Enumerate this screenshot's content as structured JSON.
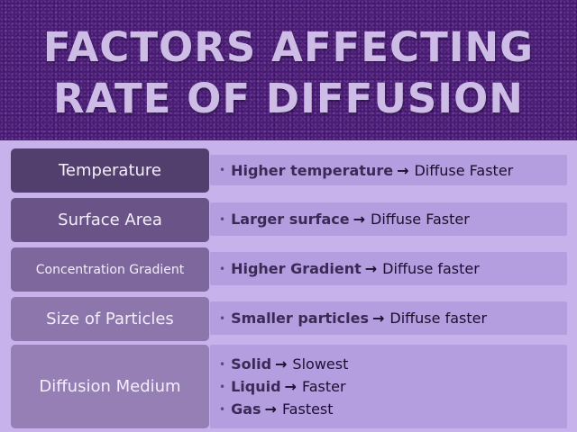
{
  "title": {
    "line1": "FACTORS AFFECTING",
    "line2": "RATE OF DIFFUSION"
  },
  "arrow_symbol": "→",
  "colors": {
    "header_bg": "#4b1b78",
    "title_text": "#cdbde6",
    "page_bg": "#c7b2ec",
    "description_bg": "#b59ee0"
  },
  "factors": [
    {
      "name": "Temperature",
      "fill": "#533f6e",
      "lines": [
        {
          "condition": "Higher temperature",
          "result": "Diffuse Faster"
        }
      ]
    },
    {
      "name": "Surface Area",
      "fill": "#6a5487",
      "lines": [
        {
          "condition": "Larger surface",
          "result": "Diffuse Faster"
        }
      ]
    },
    {
      "name": "Concentration Gradient",
      "fill": "#7e679c",
      "lines": [
        {
          "condition": "Higher Gradient",
          "result": "Diffuse faster"
        }
      ]
    },
    {
      "name": "Size of Particles",
      "fill": "#8c76ab",
      "lines": [
        {
          "condition": "Smaller particles",
          "result": "Diffuse faster"
        }
      ]
    },
    {
      "name": "Diffusion Medium",
      "fill": "#957fb5",
      "lines": [
        {
          "condition": "Solid",
          "result": "Slowest"
        },
        {
          "condition": "Liquid",
          "result": "Faster"
        },
        {
          "condition": "Gas",
          "result": "Fastest"
        }
      ]
    }
  ]
}
